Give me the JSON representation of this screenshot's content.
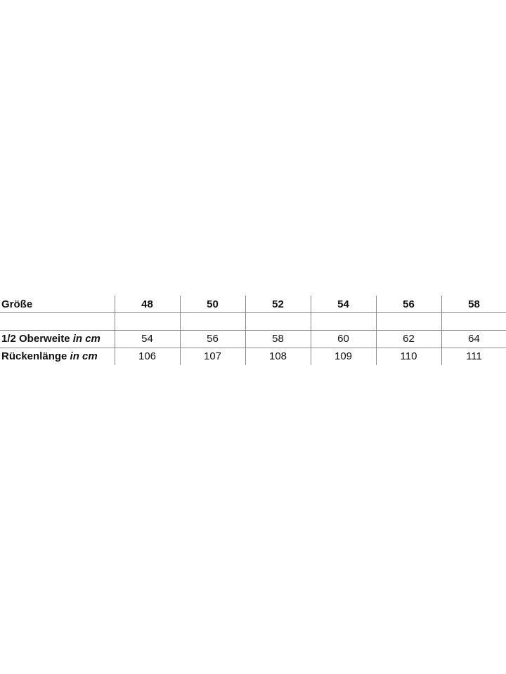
{
  "table": {
    "header": {
      "label": "Größe",
      "sizes": [
        "48",
        "50",
        "52",
        "54",
        "56",
        "58"
      ]
    },
    "rows": [
      {
        "label": "1/2 Oberweite",
        "unit": "in cm",
        "values": [
          "54",
          "56",
          "58",
          "60",
          "62",
          "64"
        ]
      },
      {
        "label": "Rückenlänge",
        "unit": "in cm",
        "values": [
          "106",
          "107",
          "108",
          "109",
          "110",
          "111"
        ]
      }
    ]
  }
}
